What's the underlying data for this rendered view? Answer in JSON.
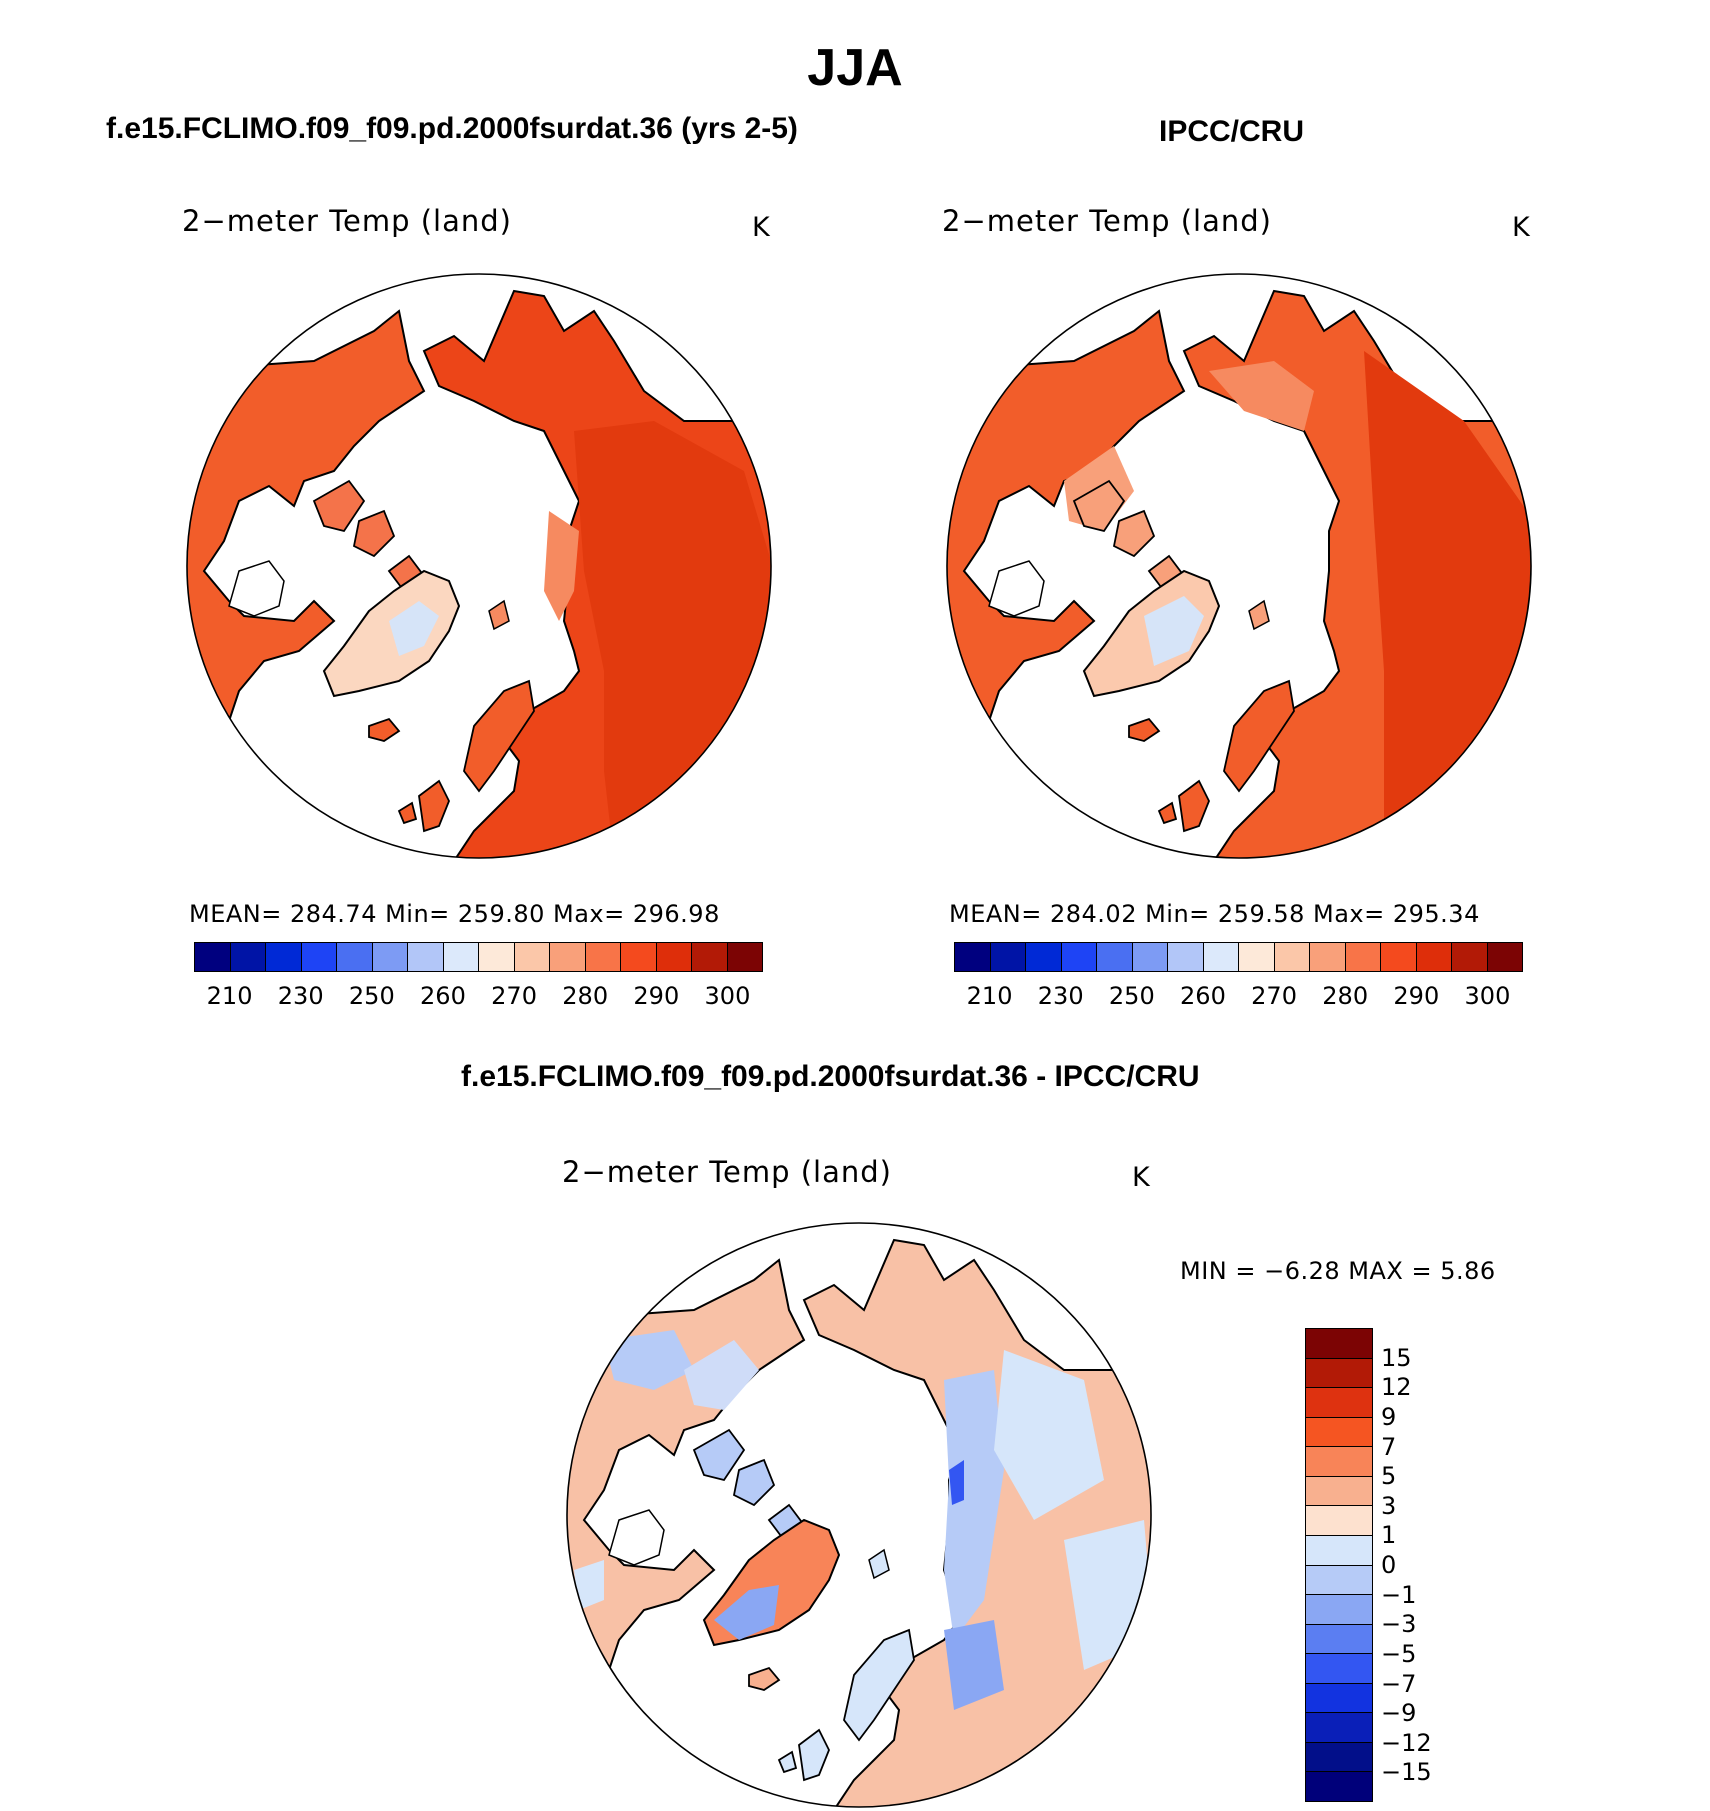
{
  "title": "JJA",
  "panels": {
    "model": {
      "header": "f.e15.FCLIMO.f09_f09.pd.2000fsurdat.36 (yrs 2-5)",
      "variable": "2−meter Temp (land)",
      "units": "K",
      "stats": "MEAN=  284.74    Min=  259.80    Max=  296.98",
      "ticks": [
        "210",
        "230",
        "250",
        "260",
        "270",
        "280",
        "290",
        "300"
      ]
    },
    "obs": {
      "header": "IPCC/CRU",
      "variable": "2−meter Temp (land)",
      "units": "K",
      "stats": "MEAN=  284.02    Min=  259.58    Max=  295.34",
      "ticks": [
        "210",
        "230",
        "250",
        "260",
        "270",
        "280",
        "290",
        "300"
      ]
    },
    "diff": {
      "header": "f.e15.FCLIMO.f09_f09.pd.2000fsurdat.36 - IPCC/CRU",
      "variable": "2−meter Temp (land)",
      "units": "K",
      "stats": "MIN  =     −6.28  MAX  =      5.86",
      "ticks": [
        "15",
        "12",
        "9",
        "7",
        "5",
        "3",
        "1",
        "0",
        "−1",
        "−3",
        "−5",
        "−7",
        "−9",
        "−12",
        "−15"
      ]
    }
  },
  "colors": {
    "abs_scale": [
      "#00007f",
      "#0014a6",
      "#0029d6",
      "#1e44f5",
      "#4a6ff2",
      "#7d9bf4",
      "#b2c6f8",
      "#dce9fb",
      "#fde9d9",
      "#fbc7a9",
      "#f9a07a",
      "#f87448",
      "#f44a1e",
      "#de2e0a",
      "#b21a06",
      "#7c0404"
    ],
    "diff_scale": [
      "#7c0404",
      "#b21a06",
      "#de3210",
      "#f55522",
      "#f88458",
      "#f8b08f",
      "#fde1cf",
      "#d6e6fa",
      "#b6cbf7",
      "#8aa7f3",
      "#5b7ef2",
      "#3356f2",
      "#1233e0",
      "#0a1fb8",
      "#020f8a",
      "#00007a"
    ],
    "model_fill": "#f25d2a",
    "obs_fill": "#f25d2a",
    "diff_fill": "#f8c1a6"
  }
}
